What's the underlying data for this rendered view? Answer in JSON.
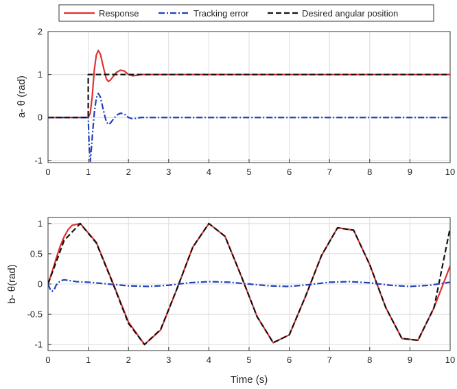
{
  "chart_data": [
    {
      "type": "line",
      "ylabel": "a- θ (rad)",
      "xlabel": "",
      "xlim": [
        0,
        10
      ],
      "ylim": [
        -1.05,
        2
      ],
      "xticks": [
        0,
        1,
        2,
        3,
        4,
        5,
        6,
        7,
        8,
        9,
        10
      ],
      "yticks": [
        -1,
        0,
        1,
        2
      ],
      "xtick_labels": [
        "0",
        "1",
        "2",
        "3",
        "4",
        "5",
        "6",
        "7",
        "8",
        "9",
        "10"
      ],
      "ytick_labels": [
        "-1",
        "0",
        "1",
        "2"
      ],
      "grid": true,
      "legend": {
        "placement": "top",
        "entries": [
          "Response",
          "Tracking error",
          "Desired angular position"
        ]
      },
      "series": [
        {
          "name": "Response",
          "color": "#e03030",
          "style": "solid",
          "x": [
            0,
            1.0,
            1.05,
            1.1,
            1.15,
            1.2,
            1.25,
            1.3,
            1.35,
            1.4,
            1.45,
            1.5,
            1.55,
            1.6,
            1.7,
            1.8,
            1.9,
            2.0,
            2.1,
            2.2,
            2.3,
            2.4,
            10
          ],
          "y": [
            0,
            0,
            0.1,
            0.5,
            1.1,
            1.45,
            1.56,
            1.48,
            1.28,
            1.08,
            0.9,
            0.84,
            0.87,
            0.93,
            1.05,
            1.1,
            1.08,
            1.0,
            0.97,
            0.98,
            1.0,
            1.0,
            1.0
          ]
        },
        {
          "name": "Tracking error",
          "color": "#1f3fbf",
          "style": "dashdot",
          "x": [
            0,
            1.0,
            1.02,
            1.05,
            1.08,
            1.1,
            1.15,
            1.2,
            1.25,
            1.3,
            1.35,
            1.4,
            1.45,
            1.5,
            1.55,
            1.6,
            1.7,
            1.8,
            1.9,
            2.0,
            2.1,
            2.2,
            2.3,
            2.4,
            10
          ],
          "y": [
            0,
            0,
            -0.6,
            -1.02,
            -0.7,
            -0.45,
            0.1,
            0.45,
            0.56,
            0.48,
            0.28,
            0.08,
            -0.1,
            -0.16,
            -0.13,
            -0.07,
            0.05,
            0.1,
            0.08,
            0.0,
            -0.03,
            -0.02,
            0.0,
            0.0,
            0.0
          ]
        },
        {
          "name": "Desired angular position",
          "color": "#111111",
          "style": "dashed",
          "x": [
            0,
            1.0,
            1.0,
            10
          ],
          "y": [
            0,
            0,
            1,
            1
          ]
        }
      ]
    },
    {
      "type": "line",
      "ylabel": "b- θ(rad)",
      "xlabel": "Time (s)",
      "xlim": [
        0,
        10
      ],
      "ylim": [
        -1.1,
        1.1
      ],
      "xticks": [
        0,
        1,
        2,
        3,
        4,
        5,
        6,
        7,
        8,
        9,
        10
      ],
      "yticks": [
        -1,
        -0.5,
        0,
        0.5,
        1
      ],
      "xtick_labels": [
        "0",
        "1",
        "2",
        "3",
        "4",
        "5",
        "6",
        "7",
        "8",
        "9",
        "10"
      ],
      "ytick_labels": [
        "-1",
        "-0.5",
        "0",
        "0.5",
        "1"
      ],
      "grid": true,
      "series": [
        {
          "name": "Response",
          "color": "#e03030",
          "style": "solid",
          "x": [
            0,
            0.1,
            0.2,
            0.3,
            0.4,
            0.5,
            0.6,
            0.8,
            1.2,
            1.6,
            2.0,
            2.4,
            2.8,
            3.2,
            3.6,
            4.0,
            4.4,
            4.8,
            5.2,
            5.6,
            6.0,
            6.4,
            6.8,
            7.2,
            7.6,
            8.0,
            8.4,
            8.8,
            9.2,
            9.6,
            10.0
          ],
          "y": [
            0,
            0.2,
            0.42,
            0.62,
            0.78,
            0.9,
            0.97,
            1.0,
            0.69,
            0.04,
            -0.63,
            -1.0,
            -0.76,
            -0.09,
            0.61,
            1.0,
            0.79,
            0.14,
            -0.54,
            -0.97,
            -0.84,
            -0.21,
            0.47,
            0.93,
            0.89,
            0.32,
            -0.39,
            -0.9,
            -0.93,
            -0.39,
            0.3
          ]
        },
        {
          "name": "Desired angular position",
          "color": "#111111",
          "style": "dashed",
          "x": [
            0,
            0.4,
            0.8,
            1.2,
            1.6,
            2.0,
            2.4,
            2.8,
            3.2,
            3.6,
            4.0,
            4.4,
            4.8,
            5.2,
            5.6,
            6.0,
            6.4,
            6.8,
            7.2,
            7.6,
            8.0,
            8.4,
            8.8,
            9.2,
            9.6,
            10.0
          ],
          "y": [
            0,
            0.72,
            1.0,
            0.68,
            0.03,
            -0.65,
            -1.0,
            -0.75,
            -0.09,
            0.61,
            1.0,
            0.79,
            0.14,
            -0.54,
            -0.97,
            -0.84,
            -0.21,
            0.47,
            0.93,
            0.89,
            0.32,
            -0.39,
            -0.9,
            -0.93,
            -0.39,
            0.93
          ]
        },
        {
          "name": "Tracking error",
          "color": "#1f3fbf",
          "style": "dashdot",
          "x": [
            0,
            0.05,
            0.1,
            0.15,
            0.2,
            0.3,
            0.4,
            0.5,
            0.7,
            1.0,
            1.5,
            2.0,
            2.5,
            3.0,
            3.5,
            4.0,
            4.5,
            5.0,
            5.5,
            6.0,
            6.5,
            7.0,
            7.5,
            8.0,
            8.5,
            9.0,
            9.5,
            10.0
          ],
          "y": [
            0,
            -0.08,
            -0.12,
            -0.1,
            -0.02,
            0.05,
            0.07,
            0.06,
            0.04,
            0.03,
            0.0,
            -0.03,
            -0.04,
            -0.02,
            0.02,
            0.04,
            0.03,
            0.0,
            -0.03,
            -0.04,
            -0.01,
            0.03,
            0.04,
            0.02,
            -0.02,
            -0.04,
            -0.02,
            0.03
          ]
        }
      ]
    }
  ]
}
